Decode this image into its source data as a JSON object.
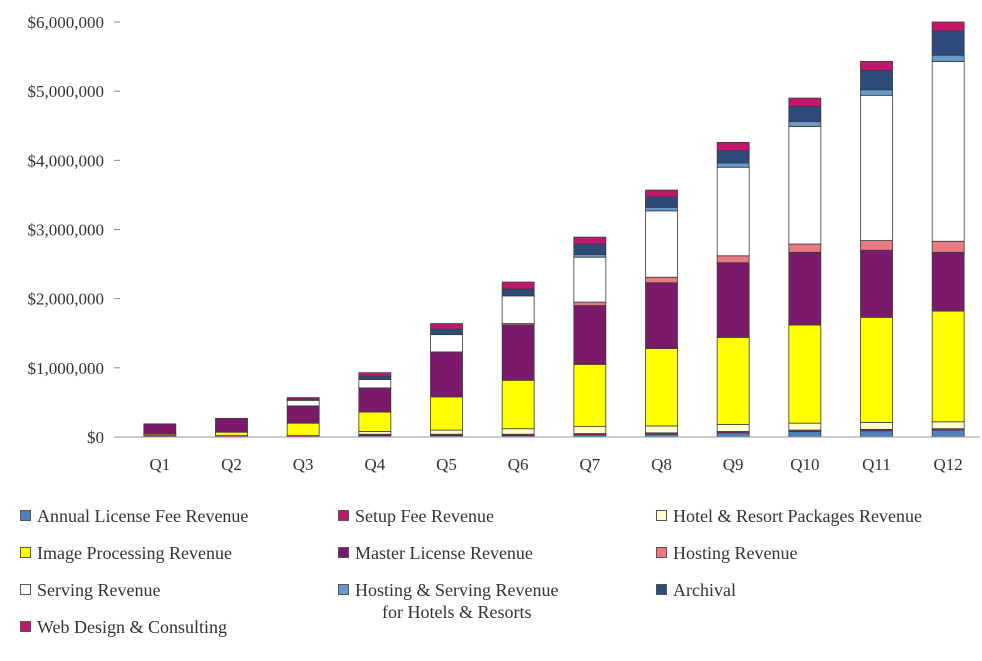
{
  "chart_data": {
    "type": "bar",
    "stacked": true,
    "categories": [
      "Q1",
      "Q2",
      "Q3",
      "Q4",
      "Q5",
      "Q6",
      "Q7",
      "Q8",
      "Q9",
      "Q10",
      "Q11",
      "Q12"
    ],
    "yticks": [
      "$0",
      "$1,000,000",
      "$2,000,000",
      "$3,000,000",
      "$4,000,000",
      "$5,000,000",
      "$6,000,000"
    ],
    "ylim": [
      0,
      6000000
    ],
    "grid": false,
    "legend_position": "bottom",
    "series": [
      {
        "name": "Annual License Fee Revenue",
        "color": "#4f81bd",
        "values": [
          0,
          0,
          0,
          20000,
          20000,
          20000,
          30000,
          40000,
          60000,
          80000,
          90000,
          100000
        ]
      },
      {
        "name": "Setup Fee Revenue",
        "color": "#c0186b",
        "values": [
          20000,
          20000,
          20000,
          20000,
          20000,
          20000,
          20000,
          20000,
          20000,
          20000,
          20000,
          20000
        ]
      },
      {
        "name": "Hotel & Resort Packages Revenue",
        "color": "#ffffcc",
        "values": [
          0,
          0,
          0,
          40000,
          60000,
          80000,
          100000,
          100000,
          100000,
          100000,
          100000,
          100000
        ]
      },
      {
        "name": "Image Processing Revenue",
        "color": "#ffff00",
        "values": [
          20000,
          50000,
          180000,
          280000,
          480000,
          700000,
          900000,
          1120000,
          1260000,
          1420000,
          1520000,
          1600000
        ]
      },
      {
        "name": "Master License Revenue",
        "color": "#7b1a6b",
        "values": [
          150000,
          200000,
          250000,
          350000,
          650000,
          800000,
          850000,
          950000,
          1080000,
          1050000,
          970000,
          850000
        ]
      },
      {
        "name": "Hosting Revenue",
        "color": "#e97a84",
        "values": [
          0,
          0,
          0,
          0,
          0,
          20000,
          50000,
          80000,
          100000,
          120000,
          140000,
          160000
        ]
      },
      {
        "name": "Serving Revenue",
        "color": "#ffffff",
        "values": [
          0,
          0,
          80000,
          120000,
          250000,
          400000,
          650000,
          960000,
          1280000,
          1700000,
          2100000,
          2600000
        ]
      },
      {
        "name": "Hosting & Serving Revenue for Hotels & Resorts",
        "color": "#6699cc",
        "values": [
          0,
          0,
          0,
          0,
          0,
          0,
          40000,
          50000,
          60000,
          70000,
          80000,
          90000
        ]
      },
      {
        "name": "Archival",
        "color": "#2e4a7a",
        "values": [
          0,
          0,
          20000,
          50000,
          80000,
          100000,
          150000,
          150000,
          180000,
          220000,
          280000,
          350000
        ]
      },
      {
        "name": "Web Design & Consulting",
        "color": "#c0186b",
        "values": [
          0,
          0,
          20000,
          50000,
          80000,
          100000,
          100000,
          100000,
          120000,
          120000,
          130000,
          130000
        ]
      }
    ]
  },
  "legend": [
    {
      "label": "Annual License Fee Revenue",
      "color": "#4f81bd"
    },
    {
      "label": "Setup Fee Revenue",
      "color": "#c0186b"
    },
    {
      "label": "Hotel & Resort Packages Revenue",
      "color": "#ffffcc"
    },
    {
      "label": "Image Processing Revenue",
      "color": "#ffff00"
    },
    {
      "label": "Master License Revenue",
      "color": "#7b1a6b"
    },
    {
      "label": "Hosting Revenue",
      "color": "#e97a84"
    },
    {
      "label": "Serving Revenue",
      "color": "#ffffff"
    },
    {
      "label": "Hosting & Serving Revenue",
      "label2": "for Hotels & Resorts",
      "color": "#6699cc"
    },
    {
      "label": "Archival",
      "color": "#2e4a7a"
    },
    {
      "label": "Web Design & Consulting",
      "color": "#c0186b"
    }
  ]
}
